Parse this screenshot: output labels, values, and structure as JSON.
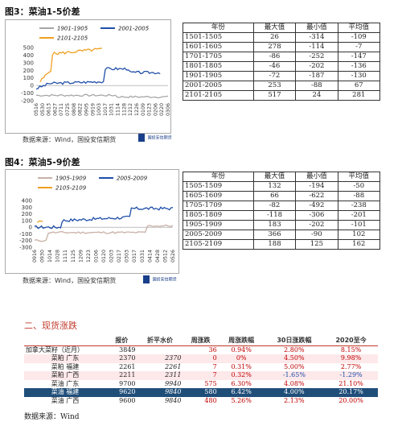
{
  "fig3": {
    "title": "图3：菜油1-5价差",
    "legend": [
      "1901-1905",
      "2001-2005",
      "2101-2105"
    ],
    "colors": [
      "#a6a6a6",
      "#1f4ea8",
      "#f0a020"
    ],
    "source": "数据来源：Wind，国投安信期货",
    "logo_text": "国投安信期货",
    "logo_sub": "SDIC ESSENCE FUTURES",
    "y_ticks": [
      "500",
      "400",
      "300",
      "200",
      "100",
      "0",
      "-100",
      "-200"
    ],
    "x_ticks": [
      "0516",
      "0530",
      "0613",
      "0627",
      "0711",
      "0725",
      "0808",
      "0822",
      "0905",
      "0919",
      "1003",
      "1017",
      "1031",
      "1114",
      "1128",
      "1212",
      "1226",
      "0109",
      "0123",
      "0206",
      "0220",
      "0306"
    ],
    "table": {
      "header": [
        "年份",
        "最大值",
        "最小值",
        "平均值"
      ],
      "rows": [
        [
          "1501-1505",
          "26",
          "-314",
          "-109"
        ],
        [
          "1601-1605",
          "278",
          "-114",
          "-7"
        ],
        [
          "1701-1705",
          "-86",
          "-252",
          "-147"
        ],
        [
          "1801-1805",
          "-46",
          "-202",
          "-136"
        ],
        [
          "1901-1905",
          "-72",
          "-187",
          "-130"
        ],
        [
          "2001-2005",
          "253",
          "-88",
          "67"
        ],
        [
          "2101-2105",
          "517",
          "24",
          "281"
        ]
      ]
    }
  },
  "fig4": {
    "title": "图4：菜油5-9价差",
    "legend": [
      "1905-1909",
      "2005-2009",
      "2105-2109"
    ],
    "colors": [
      "#c8b0a6",
      "#1f4ea8",
      "#f0a020"
    ],
    "source": "数据来源：Wind，国投安信期货",
    "logo_text": "国投安信期货",
    "logo_sub": "SDIC ESSENCE FUTURES",
    "y_ticks": [
      "400",
      "300",
      "200",
      "100",
      "0",
      "-100",
      "-200",
      "-300"
    ],
    "x_ticks": [
      "0916",
      "0930",
      "1014",
      "1028",
      "1111",
      "1125",
      "1209",
      "1223",
      "0106",
      "0120",
      "0203",
      "0217",
      "0303",
      "0317",
      "0331",
      "0414",
      "0428",
      "0512",
      "0526"
    ],
    "table": {
      "header": [
        "年份",
        "最大值",
        "最小值",
        "平均值"
      ],
      "rows": [
        [
          "1505-1509",
          "132",
          "-194",
          "-50"
        ],
        [
          "1605-1609",
          "66",
          "-622",
          "-88"
        ],
        [
          "1705-1709",
          "-82",
          "-492",
          "-238"
        ],
        [
          "1805-1809",
          "-118",
          "-306",
          "-201"
        ],
        [
          "1905-1909",
          "183",
          "-202",
          "-101"
        ],
        [
          "2005-2009",
          "366",
          "-90",
          "102"
        ],
        [
          "2105-2109",
          "188",
          "125",
          "162"
        ]
      ]
    }
  },
  "spot": {
    "section_title": "二、现货涨跌",
    "header": [
      "报价",
      "折平水价",
      "周涨跌",
      "周涨跌幅",
      "30日涨跌幅",
      "2020至今"
    ],
    "rows": [
      {
        "name": "加拿大菜籽（近月）",
        "price": "3849",
        "flat": "",
        "wk": "36",
        "wkpct": "0.94%",
        "d30": "2.80%",
        "ytd": "8.15%",
        "style": "plain"
      },
      {
        "name": "菜粕 广东",
        "price": "2370",
        "flat": "2370",
        "wk": "0",
        "wkpct": "0%",
        "d30": "4.50%",
        "ytd": "9.98%",
        "style": "pink"
      },
      {
        "name": "菜粕 福建",
        "price": "2261",
        "flat": "2261",
        "wk": "7",
        "wkpct": "0.31%",
        "d30": "5.00%",
        "ytd": "2.77%",
        "style": "plain"
      },
      {
        "name": "菜粕 广西",
        "price": "2211",
        "flat": "2311",
        "wk": "7",
        "wkpct": "0.32%",
        "d30": "-1.65%",
        "ytd": "-1.29%",
        "style": "pink"
      },
      {
        "name": "菜油 广东",
        "price": "9700",
        "flat": "9940",
        "wk": "575",
        "wkpct": "6.30%",
        "d30": "4.08%",
        "ytd": "21.10%",
        "style": "plain"
      },
      {
        "name": "菜油 福建",
        "price": "9620",
        "flat": "9840",
        "wk": "580",
        "wkpct": "6.42%",
        "d30": "4.00%",
        "ytd": "20.17%",
        "style": "blue"
      },
      {
        "name": "菜油 广西",
        "price": "9600",
        "flat": "9840",
        "wk": "480",
        "wkpct": "5.26%",
        "d30": "2.13%",
        "ytd": "20.00%",
        "style": "plain"
      }
    ],
    "source": "数据来源：Wind"
  }
}
